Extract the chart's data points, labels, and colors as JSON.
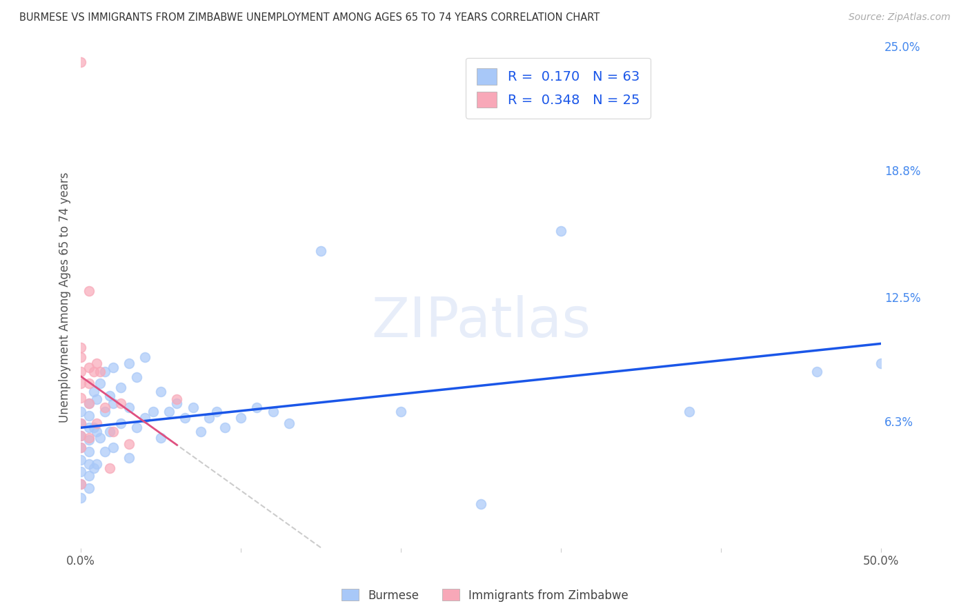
{
  "title": "BURMESE VS IMMIGRANTS FROM ZIMBABWE UNEMPLOYMENT AMONG AGES 65 TO 74 YEARS CORRELATION CHART",
  "source": "Source: ZipAtlas.com",
  "ylabel": "Unemployment Among Ages 65 to 74 years",
  "xlim": [
    0,
    0.5
  ],
  "ylim": [
    0,
    0.25
  ],
  "yticks_right": [
    0.0,
    0.063,
    0.125,
    0.188,
    0.25
  ],
  "yticklabels_right": [
    "",
    "6.3%",
    "12.5%",
    "18.8%",
    "25.0%"
  ],
  "burmese_color": "#a8c8f8",
  "zimbabwe_color": "#f8a8b8",
  "trend_blue": "#1a56e8",
  "trend_pink": "#e05080",
  "R_burmese": 0.17,
  "N_burmese": 63,
  "R_zimbabwe": 0.348,
  "N_zimbabwe": 25,
  "burmese_x": [
    0.0,
    0.0,
    0.0,
    0.0,
    0.0,
    0.0,
    0.0,
    0.0,
    0.005,
    0.005,
    0.005,
    0.005,
    0.005,
    0.005,
    0.005,
    0.005,
    0.008,
    0.008,
    0.008,
    0.01,
    0.01,
    0.01,
    0.012,
    0.012,
    0.015,
    0.015,
    0.015,
    0.018,
    0.018,
    0.02,
    0.02,
    0.02,
    0.025,
    0.025,
    0.03,
    0.03,
    0.03,
    0.035,
    0.035,
    0.04,
    0.04,
    0.045,
    0.05,
    0.05,
    0.055,
    0.06,
    0.065,
    0.07,
    0.075,
    0.08,
    0.085,
    0.09,
    0.1,
    0.11,
    0.12,
    0.13,
    0.15,
    0.2,
    0.25,
    0.3,
    0.38,
    0.46,
    0.5
  ],
  "burmese_y": [
    0.068,
    0.062,
    0.056,
    0.05,
    0.044,
    0.038,
    0.032,
    0.025,
    0.072,
    0.066,
    0.06,
    0.054,
    0.048,
    0.042,
    0.036,
    0.03,
    0.078,
    0.06,
    0.04,
    0.074,
    0.058,
    0.042,
    0.082,
    0.055,
    0.088,
    0.068,
    0.048,
    0.076,
    0.058,
    0.09,
    0.072,
    0.05,
    0.08,
    0.062,
    0.092,
    0.07,
    0.045,
    0.085,
    0.06,
    0.095,
    0.065,
    0.068,
    0.078,
    0.055,
    0.068,
    0.072,
    0.065,
    0.07,
    0.058,
    0.065,
    0.068,
    0.06,
    0.065,
    0.07,
    0.068,
    0.062,
    0.148,
    0.068,
    0.022,
    0.158,
    0.068,
    0.088,
    0.092
  ],
  "zimbabwe_x": [
    0.0,
    0.0,
    0.0,
    0.0,
    0.0,
    0.0,
    0.0,
    0.0,
    0.0,
    0.0,
    0.005,
    0.005,
    0.005,
    0.005,
    0.005,
    0.008,
    0.01,
    0.01,
    0.012,
    0.015,
    0.018,
    0.02,
    0.025,
    0.03,
    0.06
  ],
  "zimbabwe_y": [
    0.242,
    0.1,
    0.095,
    0.088,
    0.082,
    0.075,
    0.062,
    0.056,
    0.05,
    0.032,
    0.128,
    0.09,
    0.082,
    0.072,
    0.055,
    0.088,
    0.092,
    0.062,
    0.088,
    0.07,
    0.04,
    0.058,
    0.072,
    0.052,
    0.074
  ],
  "watermark": "ZIPatlas",
  "background_color": "#ffffff",
  "grid_color": "#dddddd"
}
